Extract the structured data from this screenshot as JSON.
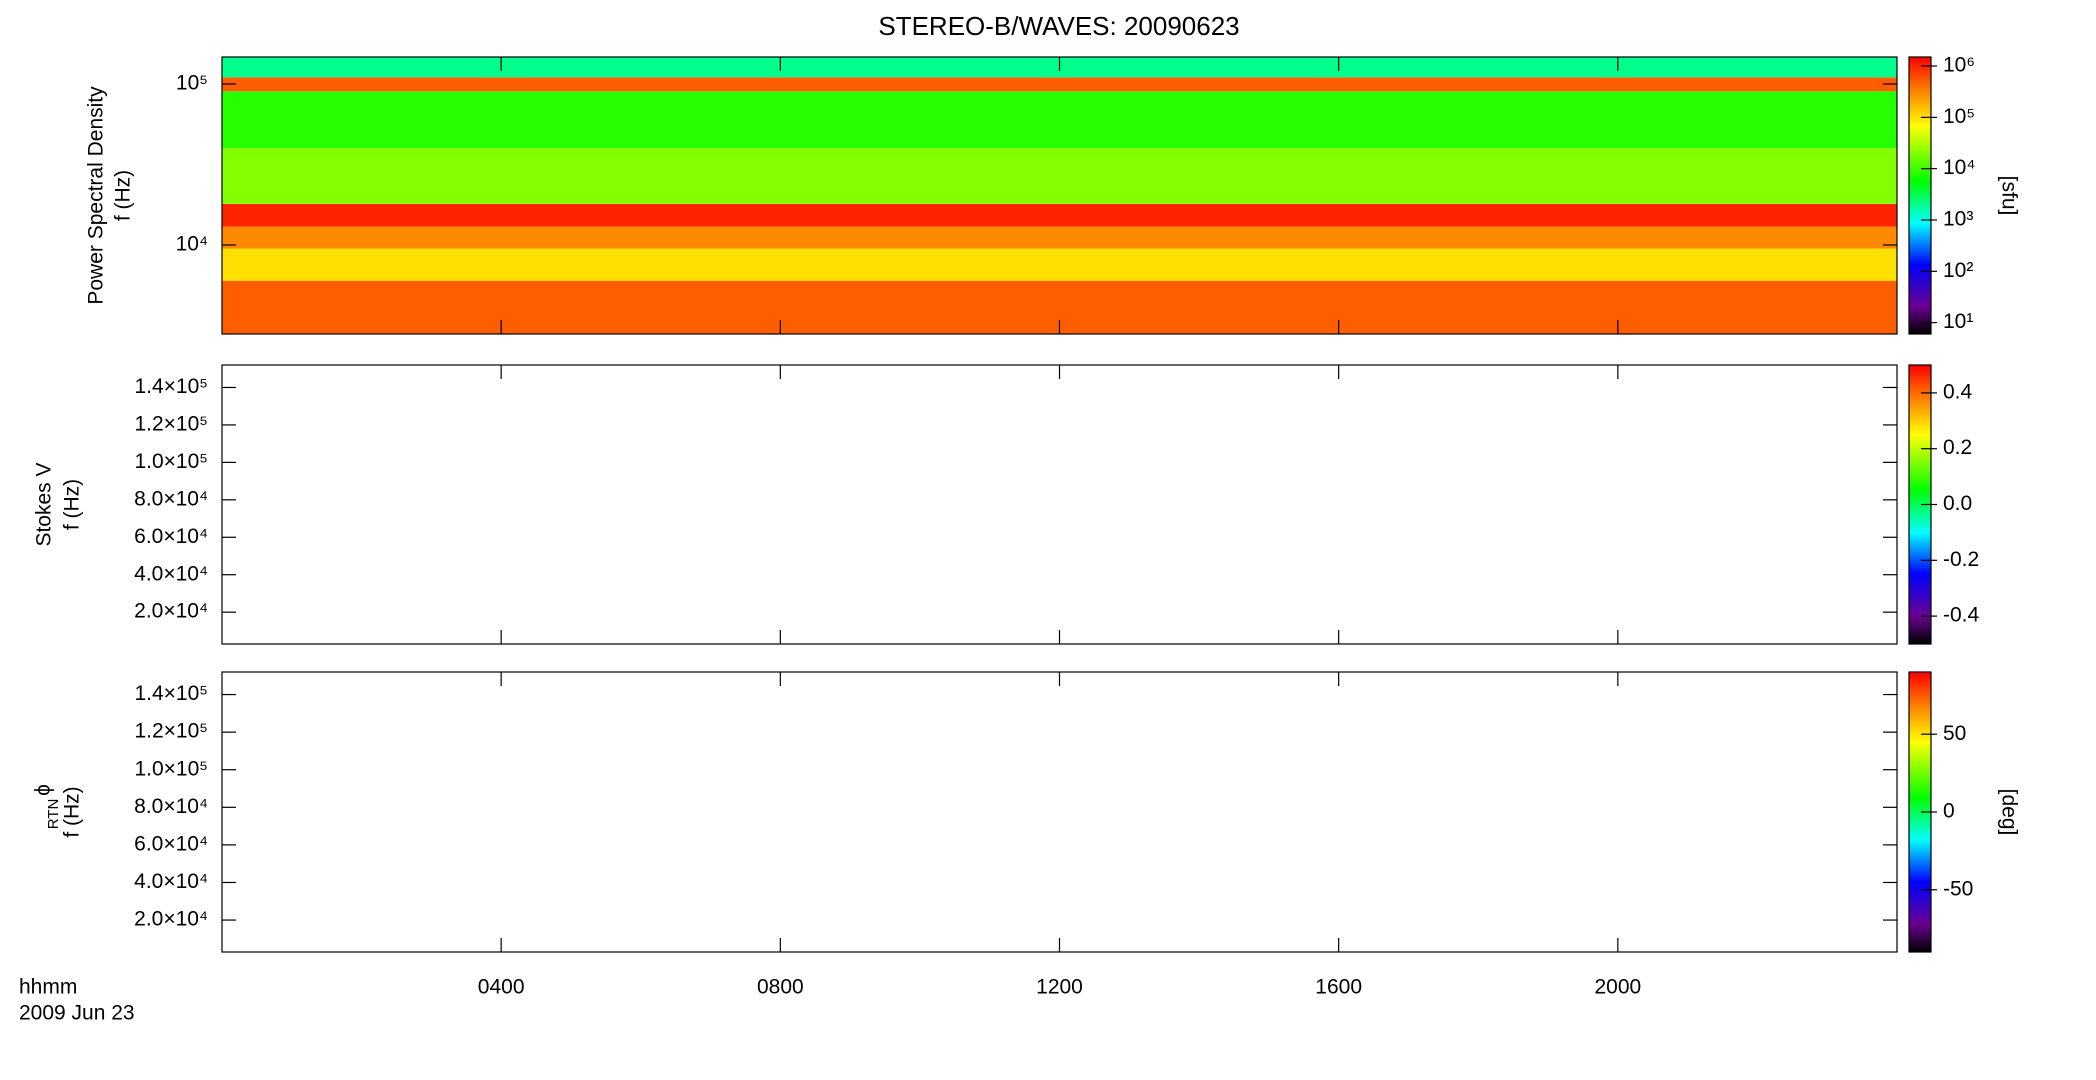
{
  "chart_data": [
    {
      "type": "heatmap",
      "title": "STEREO-B/WAVES: 20090623",
      "ylabel": [
        "Power Spectral Density",
        "f (Hz)"
      ],
      "ylog": true,
      "ylim": [
        2800,
        147000
      ],
      "yticks": [
        {
          "value": 10000,
          "label": "10⁴"
        },
        {
          "value": 100000,
          "label": "10⁵"
        }
      ],
      "xlim": [
        0,
        24
      ],
      "xticks": [
        4,
        8,
        12,
        16,
        20
      ],
      "y_edges": [
        2800,
        6000,
        9500,
        13000,
        18000,
        40000,
        90000,
        110000,
        147000
      ],
      "values": [
        500000,
        100000,
        300000,
        1000000,
        20000,
        8000,
        500000,
        2000
      ],
      "zlog": true,
      "zlim": [
        6,
        1500000
      ],
      "zticks": [
        {
          "value": 10,
          "label": "10¹"
        },
        {
          "value": 100,
          "label": "10²"
        },
        {
          "value": 1000,
          "label": "10³"
        },
        {
          "value": 10000,
          "label": "10⁴"
        },
        {
          "value": 100000,
          "label": "10⁵"
        },
        {
          "value": 1000000,
          "label": "10⁶"
        }
      ],
      "zlabel": "[sfu]"
    },
    {
      "type": "heatmap",
      "ylabel": [
        "Stokes V",
        "f (Hz)"
      ],
      "ylim": [
        3000,
        152000
      ],
      "yticks": [
        {
          "value": 20000,
          "label": "2.0×10⁴"
        },
        {
          "value": 40000,
          "label": "4.0×10⁴"
        },
        {
          "value": 60000,
          "label": "6.0×10⁴"
        },
        {
          "value": 80000,
          "label": "8.0×10⁴"
        },
        {
          "value": 100000,
          "label": "1.0×10⁵"
        },
        {
          "value": 120000,
          "label": "1.2×10⁵"
        },
        {
          "value": 140000,
          "label": "1.4×10⁵"
        }
      ],
      "xlim": [
        0,
        24
      ],
      "xticks": [
        4,
        8,
        12,
        16,
        20
      ],
      "zlim": [
        -0.5,
        0.5
      ],
      "zticks": [
        -0.4,
        -0.2,
        {
          "value": 0,
          "label": "0.0"
        },
        0.2,
        0.4
      ]
    },
    {
      "type": "heatmap",
      "ylabel_symbol": "ϕ",
      "ylabel_subscript": "RTN",
      "ylabel": [
        "f (Hz)"
      ],
      "ylim": [
        3000,
        152000
      ],
      "yticks": [
        {
          "value": 20000,
          "label": "2.0×10⁴"
        },
        {
          "value": 40000,
          "label": "4.0×10⁴"
        },
        {
          "value": 60000,
          "label": "6.0×10⁴"
        },
        {
          "value": 80000,
          "label": "8.0×10⁴"
        },
        {
          "value": 100000,
          "label": "1.0×10⁵"
        },
        {
          "value": 120000,
          "label": "1.2×10⁵"
        },
        {
          "value": 140000,
          "label": "1.4×10⁵"
        }
      ],
      "xlim": [
        0,
        24
      ],
      "xticks": [
        {
          "value": 4,
          "label": "0400"
        },
        {
          "value": 8,
          "label": "0800"
        },
        {
          "value": 12,
          "label": "1200"
        },
        {
          "value": 16,
          "label": "1600"
        },
        {
          "value": 20,
          "label": "2000"
        }
      ],
      "xlabel": [
        "hhmm",
        "2009 Jun 23"
      ],
      "zlim": [
        -90,
        90
      ],
      "zticks": [
        -50,
        0,
        50
      ],
      "zlabel": "[deg]"
    }
  ]
}
